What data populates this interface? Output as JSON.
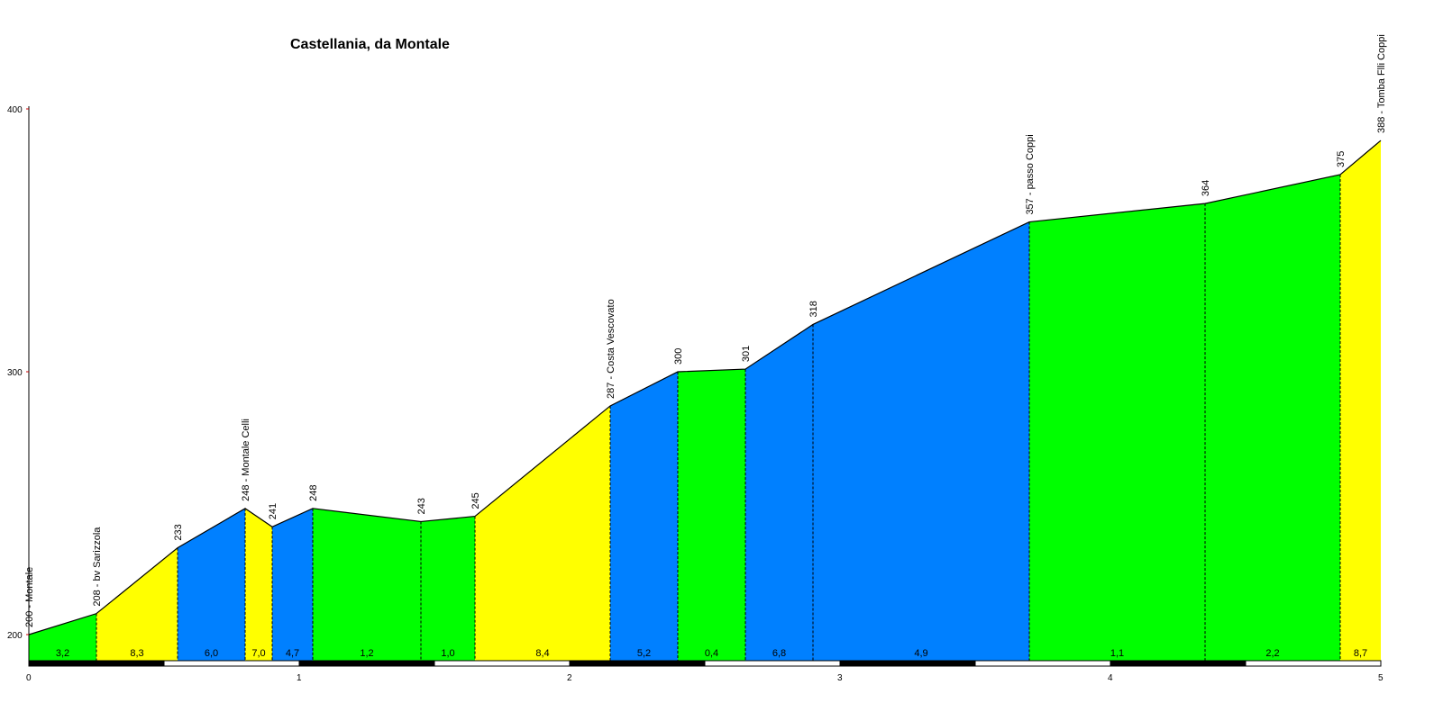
{
  "chart_data": {
    "type": "area",
    "title": "Castellania, da Montale",
    "xlim": [
      0,
      5
    ],
    "ylim": [
      190,
      400
    ],
    "x_ticks": [
      "0",
      "1",
      "2",
      "3",
      "4",
      "5"
    ],
    "y_ticks": [
      "200",
      "300",
      "400"
    ],
    "points": [
      {
        "x": 0.0,
        "y": 200,
        "label": "200 - Montale"
      },
      {
        "x": 0.25,
        "y": 208,
        "label": "208 - bv Sarizzola"
      },
      {
        "x": 0.55,
        "y": 233,
        "label": "233"
      },
      {
        "x": 0.8,
        "y": 248,
        "label": "248 - Montale Celli"
      },
      {
        "x": 0.9,
        "y": 241,
        "label": "241"
      },
      {
        "x": 1.05,
        "y": 248,
        "label": "248"
      },
      {
        "x": 1.45,
        "y": 243,
        "label": "243"
      },
      {
        "x": 1.65,
        "y": 245,
        "label": "245"
      },
      {
        "x": 2.15,
        "y": 287,
        "label": "287 - Costa Vescovato"
      },
      {
        "x": 2.4,
        "y": 300,
        "label": "300"
      },
      {
        "x": 2.65,
        "y": 301,
        "label": "301"
      },
      {
        "x": 2.9,
        "y": 318,
        "label": "318"
      },
      {
        "x": 3.7,
        "y": 357,
        "label": "357 - passo Coppi"
      },
      {
        "x": 4.35,
        "y": 364,
        "label": "364"
      },
      {
        "x": 4.85,
        "y": 375,
        "label": "375"
      },
      {
        "x": 5.0,
        "y": 388,
        "label": "388 - Tomba Flli Coppi"
      }
    ],
    "segments": [
      {
        "gradient": "3,2",
        "color": "#00ff00"
      },
      {
        "gradient": "8,3",
        "color": "#ffff00"
      },
      {
        "gradient": "6,0",
        "color": "#0080ff"
      },
      {
        "gradient": "7,0",
        "color": "#ffff00"
      },
      {
        "gradient": "4,7",
        "color": "#0080ff"
      },
      {
        "gradient": "1,2",
        "color": "#00ff00"
      },
      {
        "gradient": "1,0",
        "color": "#00ff00"
      },
      {
        "gradient": "8,4",
        "color": "#ffff00"
      },
      {
        "gradient": "5,2",
        "color": "#0080ff"
      },
      {
        "gradient": "0,4",
        "color": "#00ff00"
      },
      {
        "gradient": "6,8",
        "color": "#0080ff"
      },
      {
        "gradient": "4,9",
        "color": "#0080ff"
      },
      {
        "gradient": "1,1",
        "color": "#00ff00"
      },
      {
        "gradient": "2,2",
        "color": "#00ff00"
      },
      {
        "gradient": "8,7",
        "color": "#ffff00"
      }
    ]
  }
}
